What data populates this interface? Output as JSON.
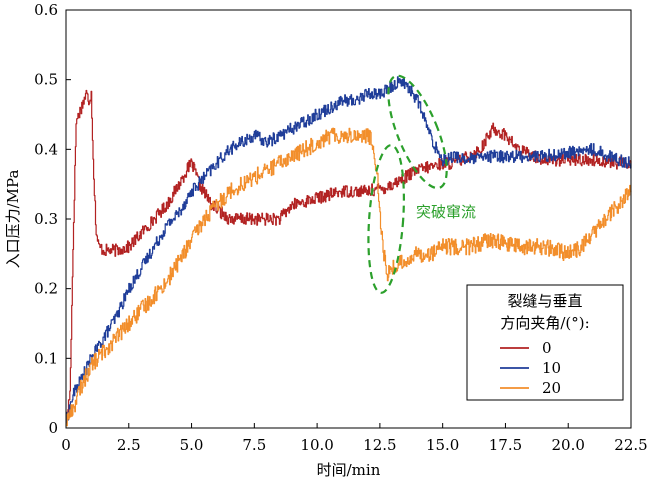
{
  "chart_data": {
    "type": "line",
    "xlabel": "时间/min",
    "ylabel": "入口压力/MPa",
    "xlim": [
      0,
      22.5
    ],
    "ylim": [
      0,
      0.6
    ],
    "xticks": [
      "0",
      "2.5",
      "5.0",
      "7.5",
      "10.0",
      "12.5",
      "15.0",
      "17.5",
      "20.0",
      "22.5"
    ],
    "yticks": [
      "0",
      "0.1",
      "0.2",
      "0.3",
      "0.4",
      "0.5",
      "0.6"
    ],
    "legend": {
      "title_line1": "裂缝与垂直",
      "title_line2": "方向夹角/(°):",
      "position": "lower-right"
    },
    "annotation": {
      "text": "突破窜流",
      "color": "#2ca02c"
    },
    "series": [
      {
        "name": "0",
        "color": "#b22222",
        "x": [
          0,
          0.15,
          0.3,
          0.4,
          0.5,
          0.6,
          0.7,
          0.8,
          0.9,
          1.0,
          1.1,
          1.2,
          1.3,
          1.5,
          2.0,
          2.5,
          3.0,
          3.5,
          4.0,
          4.5,
          4.8,
          5.0,
          5.3,
          5.8,
          6.5,
          7.5,
          8.5,
          9.0,
          10.0,
          11.0,
          12.0,
          12.7,
          13.0,
          13.5,
          14.0,
          14.5,
          15.0,
          15.5,
          16.0,
          16.5,
          17.0,
          17.5,
          18.0,
          19.0,
          20.0,
          21.0,
          22.0,
          22.5
        ],
        "y": [
          0.01,
          0.05,
          0.3,
          0.44,
          0.45,
          0.46,
          0.47,
          0.48,
          0.47,
          0.48,
          0.36,
          0.28,
          0.26,
          0.255,
          0.255,
          0.26,
          0.28,
          0.3,
          0.32,
          0.35,
          0.37,
          0.38,
          0.35,
          0.32,
          0.3,
          0.3,
          0.3,
          0.32,
          0.33,
          0.34,
          0.34,
          0.345,
          0.35,
          0.36,
          0.37,
          0.375,
          0.38,
          0.38,
          0.39,
          0.4,
          0.43,
          0.42,
          0.4,
          0.385,
          0.385,
          0.385,
          0.38,
          0.38
        ]
      },
      {
        "name": "10",
        "color": "#1f3d99",
        "x": [
          0,
          0.3,
          0.6,
          1.0,
          1.5,
          2.0,
          2.5,
          3.0,
          3.5,
          4.0,
          4.5,
          5.0,
          5.5,
          6.0,
          6.5,
          7.0,
          7.5,
          8.0,
          8.5,
          9.0,
          9.5,
          10.0,
          10.5,
          11.0,
          11.5,
          12.0,
          12.5,
          13.0,
          13.3,
          13.6,
          14.0,
          14.3,
          14.6,
          15.0,
          15.5,
          16.0,
          17.0,
          18.0,
          19.0,
          20.0,
          21.0,
          22.0,
          22.5
        ],
        "y": [
          0.01,
          0.05,
          0.07,
          0.1,
          0.13,
          0.16,
          0.2,
          0.23,
          0.26,
          0.29,
          0.31,
          0.34,
          0.36,
          0.38,
          0.4,
          0.41,
          0.42,
          0.41,
          0.42,
          0.43,
          0.44,
          0.45,
          0.46,
          0.47,
          0.47,
          0.48,
          0.48,
          0.49,
          0.5,
          0.49,
          0.47,
          0.44,
          0.41,
          0.385,
          0.39,
          0.385,
          0.39,
          0.39,
          0.39,
          0.395,
          0.4,
          0.385,
          0.38
        ]
      },
      {
        "name": "20",
        "color": "#f28e2b",
        "x": [
          0,
          0.3,
          0.6,
          1.0,
          1.5,
          2.0,
          2.5,
          3.0,
          3.5,
          4.0,
          4.5,
          5.0,
          5.5,
          6.0,
          6.5,
          7.0,
          7.5,
          8.0,
          8.5,
          9.0,
          9.5,
          10.0,
          10.5,
          11.0,
          11.5,
          12.0,
          12.2,
          12.4,
          12.6,
          12.8,
          13.0,
          13.5,
          14.0,
          14.5,
          15.0,
          16.0,
          17.0,
          18.0,
          19.0,
          20.0,
          20.5,
          21.0,
          21.5,
          22.0,
          22.5
        ],
        "y": [
          0.01,
          0.03,
          0.06,
          0.09,
          0.11,
          0.13,
          0.15,
          0.17,
          0.19,
          0.21,
          0.24,
          0.27,
          0.3,
          0.32,
          0.34,
          0.35,
          0.36,
          0.37,
          0.38,
          0.39,
          0.4,
          0.41,
          0.42,
          0.42,
          0.42,
          0.42,
          0.41,
          0.36,
          0.26,
          0.22,
          0.23,
          0.24,
          0.25,
          0.25,
          0.26,
          0.26,
          0.27,
          0.26,
          0.26,
          0.25,
          0.26,
          0.28,
          0.3,
          0.32,
          0.34
        ]
      }
    ]
  }
}
